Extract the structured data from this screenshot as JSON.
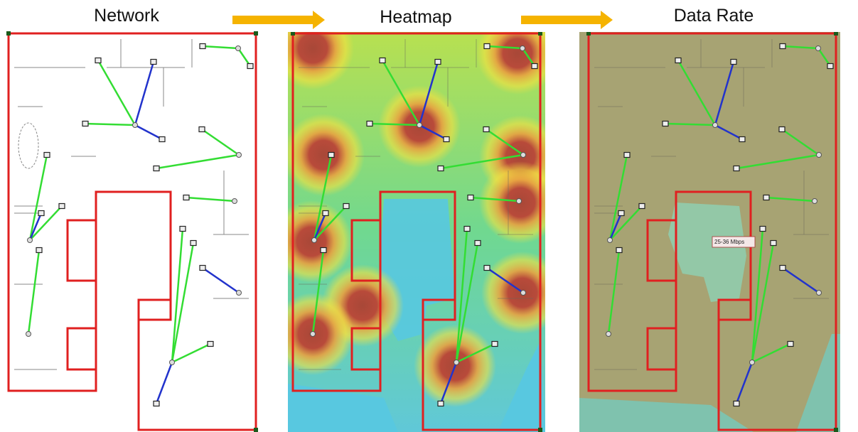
{
  "panels": [
    {
      "title": "Network"
    },
    {
      "title": "Heatmap"
    },
    {
      "title": "Data Rate"
    }
  ],
  "tooltip": "25-36 Mbps"
}
